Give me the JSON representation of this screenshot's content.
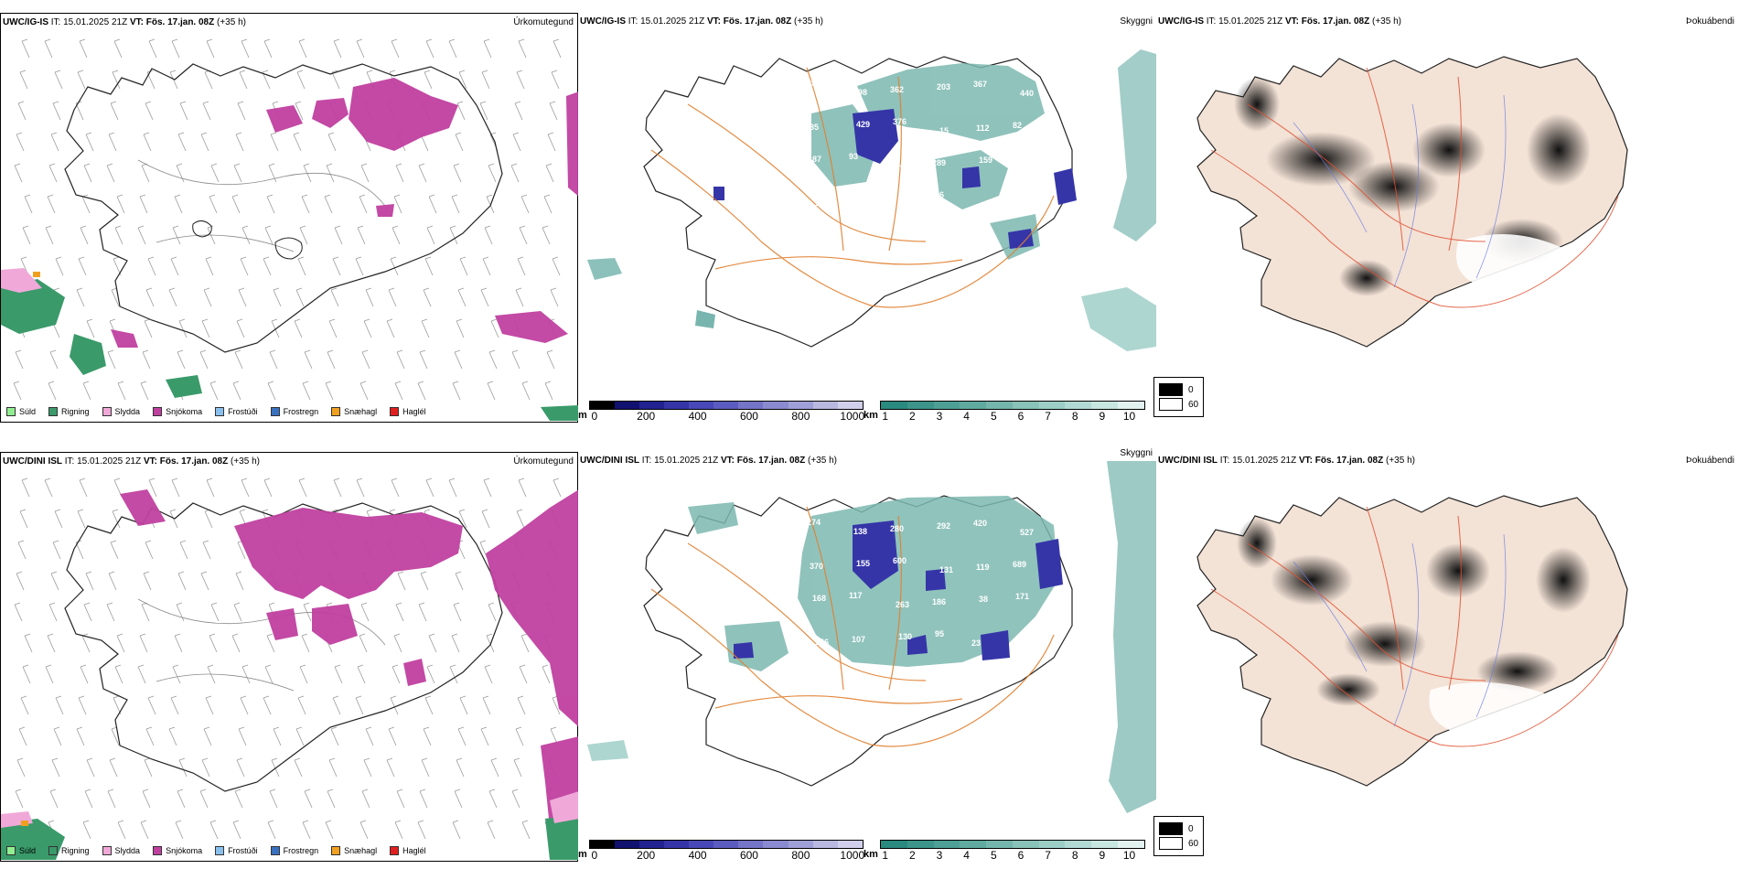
{
  "rows": [
    {
      "model": "UWC/IG-IS",
      "it_label": "IT:",
      "it_value": "15.01.2025 21Z",
      "vt_label": "VT:",
      "vt_value": "Fös. 17.jan. 08Z",
      "lead": "(+35 h)"
    },
    {
      "model": "UWC/DINI ISL",
      "it_label": "IT:",
      "it_value": "15.01.2025 21Z",
      "vt_label": "VT:",
      "vt_value": "Fös. 17.jan. 08Z",
      "lead": "(+35 h)"
    }
  ],
  "panel_titles": {
    "precip_type": "Úrkomutegund",
    "visibility": "Skyggni",
    "fog": "Þokuábendi"
  },
  "precip_legend": [
    {
      "label": "Súld",
      "color": "#90ee90"
    },
    {
      "label": "Rigning",
      "color": "#3a9a6a"
    },
    {
      "label": "Slydda",
      "color": "#f0a8d8"
    },
    {
      "label": "Snjókoma",
      "color": "#c040a0"
    },
    {
      "label": "Frostúði",
      "color": "#8ac0ee"
    },
    {
      "label": "Frostregn",
      "color": "#3a70c0"
    },
    {
      "label": "Snæhagl",
      "color": "#f0a020"
    },
    {
      "label": "Haglél",
      "color": "#e02020"
    }
  ],
  "ceiling_bar": {
    "unit": "m",
    "ticks": [
      "0",
      "200",
      "400",
      "600",
      "800",
      "1000"
    ],
    "colors": [
      "#000000",
      "#111170",
      "#222290",
      "#3535a8",
      "#4848b8",
      "#5c5cc0",
      "#7474c8",
      "#8a8ad0",
      "#a0a0d8",
      "#b8b8e0",
      "#d0d0ec"
    ]
  },
  "visibility_bar": {
    "unit": "km",
    "ticks": [
      "1",
      "2",
      "3",
      "4",
      "5",
      "6",
      "7",
      "8",
      "9",
      "10"
    ],
    "colors": [
      "#2a8a80",
      "#3c948a",
      "#4ea096",
      "#60aaa0",
      "#74b6ac",
      "#88c2b8",
      "#9ccec6",
      "#b2dad4",
      "#c8e6e0",
      "#e2f2ef"
    ]
  },
  "fog_legend": [
    {
      "value": "0",
      "color": "#000000"
    },
    {
      "value": "60",
      "color": "#ffffff"
    }
  ],
  "ceiling_labels_row1": [
    "258",
    "398",
    "362",
    "203",
    "367",
    "440",
    "85",
    "429",
    "376",
    "15",
    "112",
    "82",
    "87",
    "93",
    "94",
    "289",
    "159",
    "141",
    "112",
    "72",
    "124",
    "96"
  ],
  "ceiling_labels_row2": [
    "274",
    "138",
    "280",
    "292",
    "420",
    "527",
    "370",
    "155",
    "600",
    "131",
    "119",
    "689",
    "168",
    "117",
    "263",
    "186",
    "38",
    "171",
    "146",
    "107",
    "130",
    "95",
    "23",
    "182",
    "76"
  ]
}
